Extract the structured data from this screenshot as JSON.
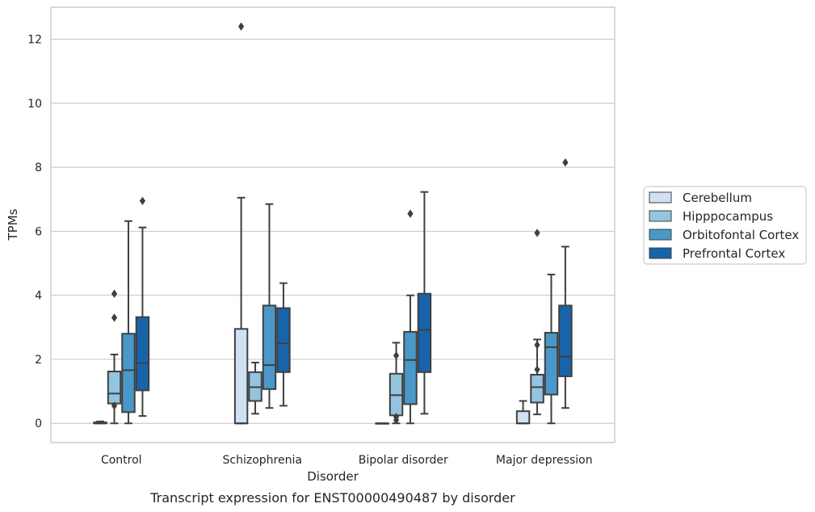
{
  "chart_data": {
    "type": "box",
    "xlabel": "Disorder",
    "ylabel": "TPMs",
    "caption": "Transcript expression for ENST00000490487 by disorder",
    "categories": [
      "Control",
      "Schizophrenia",
      "Bipolar disorder",
      "Major depression"
    ],
    "ylim": [
      -0.6,
      13.0
    ],
    "yticks": [
      0,
      2,
      4,
      6,
      8,
      10,
      12
    ],
    "grid": true,
    "legend_position": "right",
    "series": [
      {
        "name": "Cerebellum",
        "color": "#d0e1f2",
        "boxes": [
          {
            "whislo": 0.0,
            "q1": 0.0,
            "med": 0.0,
            "q3": 0.03,
            "whishi": 0.06,
            "fliers": []
          },
          {
            "whislo": 0.0,
            "q1": 0.0,
            "med": 0.0,
            "q3": 2.95,
            "whishi": 7.05,
            "fliers": [
              12.4
            ]
          },
          {
            "whislo": 0.0,
            "q1": 0.0,
            "med": 0.0,
            "q3": 0.0,
            "whishi": 0.0,
            "fliers": []
          },
          {
            "whislo": 0.0,
            "q1": 0.0,
            "med": 0.0,
            "q3": 0.38,
            "whishi": 0.7,
            "fliers": []
          }
        ]
      },
      {
        "name": "Hipppocampus",
        "color": "#94c4df",
        "boxes": [
          {
            "whislo": 0.0,
            "q1": 0.62,
            "med": 0.93,
            "q3": 1.62,
            "whishi": 2.15,
            "fliers": [
              0.55,
              3.3,
              4.05
            ]
          },
          {
            "whislo": 0.3,
            "q1": 0.7,
            "med": 1.13,
            "q3": 1.6,
            "whishi": 1.9,
            "fliers": []
          },
          {
            "whislo": 0.0,
            "q1": 0.25,
            "med": 0.88,
            "q3": 1.55,
            "whishi": 2.52,
            "fliers": [
              0.1,
              0.2,
              2.12
            ]
          },
          {
            "whislo": 0.28,
            "q1": 0.65,
            "med": 1.13,
            "q3": 1.52,
            "whishi": 2.62,
            "fliers": [
              1.68,
              2.45,
              5.95
            ]
          }
        ]
      },
      {
        "name": "Orbitofontal Cortex",
        "color": "#4a98c9",
        "boxes": [
          {
            "whislo": 0.0,
            "q1": 0.35,
            "med": 1.66,
            "q3": 2.8,
            "whishi": 6.32,
            "fliers": []
          },
          {
            "whislo": 0.48,
            "q1": 1.07,
            "med": 1.82,
            "q3": 3.68,
            "whishi": 6.85,
            "fliers": []
          },
          {
            "whislo": 0.0,
            "q1": 0.6,
            "med": 1.98,
            "q3": 2.86,
            "whishi": 4.0,
            "fliers": [
              6.55
            ]
          },
          {
            "whislo": 0.0,
            "q1": 0.9,
            "med": 2.38,
            "q3": 2.83,
            "whishi": 4.65,
            "fliers": []
          }
        ]
      },
      {
        "name": "Prefrontal Cortex",
        "color": "#1764ab",
        "boxes": [
          {
            "whislo": 0.23,
            "q1": 1.03,
            "med": 1.88,
            "q3": 3.32,
            "whishi": 6.12,
            "fliers": [
              6.95
            ]
          },
          {
            "whislo": 0.55,
            "q1": 1.6,
            "med": 2.5,
            "q3": 3.6,
            "whishi": 4.38,
            "fliers": []
          },
          {
            "whislo": 0.3,
            "q1": 1.6,
            "med": 2.92,
            "q3": 4.05,
            "whishi": 7.23,
            "fliers": []
          },
          {
            "whislo": 0.48,
            "q1": 1.47,
            "med": 2.08,
            "q3": 3.68,
            "whishi": 5.52,
            "fliers": [
              8.15
            ]
          }
        ]
      }
    ]
  },
  "colors": {
    "grid": "#cccccc",
    "frame": "#cccccc",
    "box_edge": "#3f3f3f",
    "legend_border": "#cccccc"
  }
}
